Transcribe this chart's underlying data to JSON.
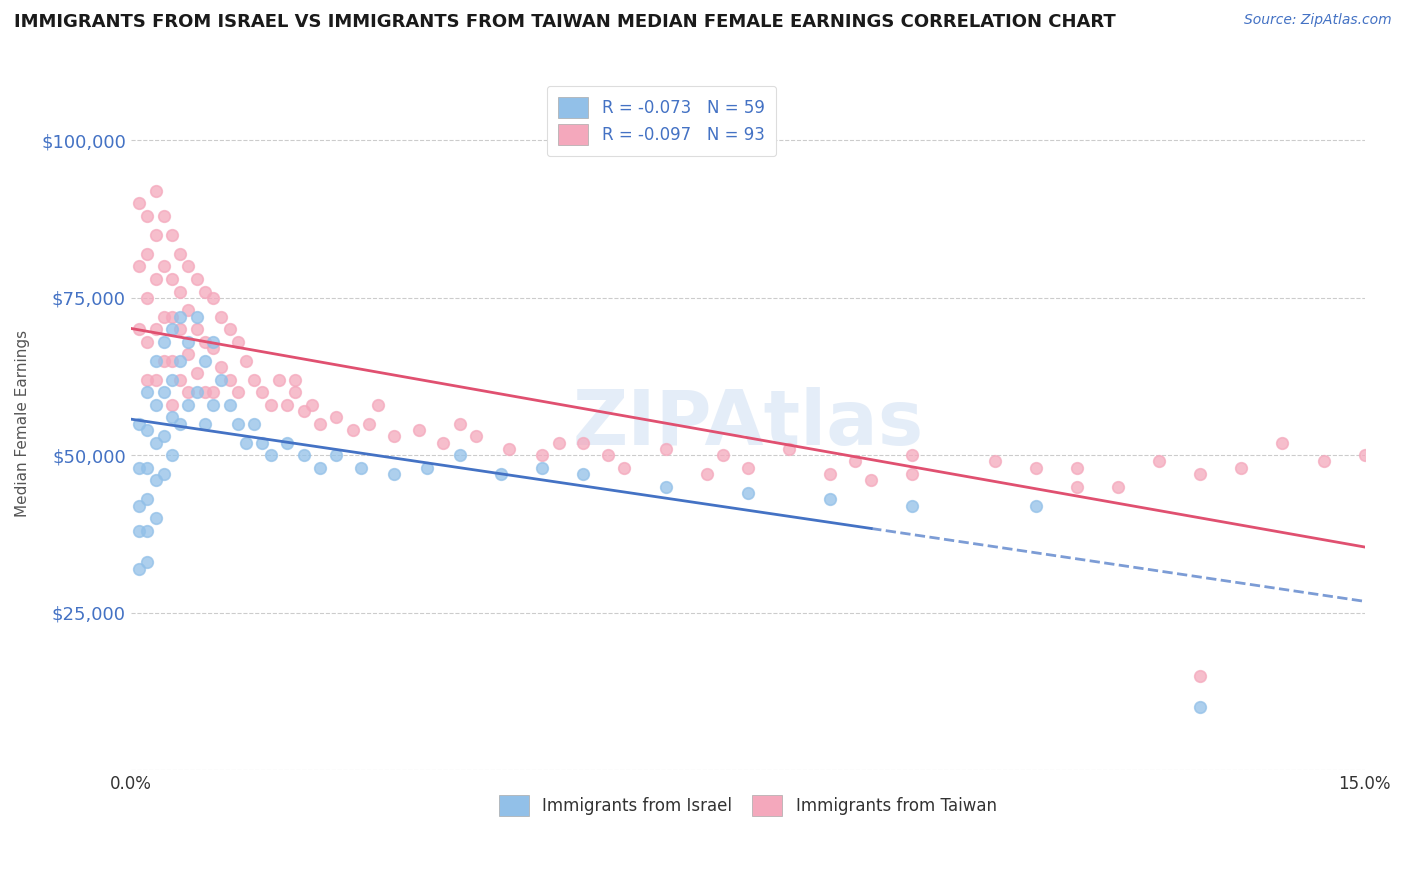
{
  "title": "IMMIGRANTS FROM ISRAEL VS IMMIGRANTS FROM TAIWAN MEDIAN FEMALE EARNINGS CORRELATION CHART",
  "source": "Source: ZipAtlas.com",
  "ylabel": "Median Female Earnings",
  "xlim": [
    0.0,
    0.15
  ],
  "ylim": [
    0,
    110000
  ],
  "yticks": [
    0,
    25000,
    50000,
    75000,
    100000
  ],
  "legend_israel": "R = -0.073   N = 59",
  "legend_taiwan": "R = -0.097   N = 93",
  "israel_color": "#92c0e8",
  "taiwan_color": "#f4a8bc",
  "israel_line_color": "#4472c4",
  "taiwan_line_color": "#e05070",
  "title_color": "#1a1a1a",
  "axis_label_color": "#555555",
  "tick_color_y": "#4472c4",
  "grid_color": "#cccccc",
  "background_color": "#ffffff",
  "watermark": "ZIPAtlas",
  "israel_x": [
    0.001,
    0.001,
    0.001,
    0.001,
    0.001,
    0.002,
    0.002,
    0.002,
    0.002,
    0.002,
    0.002,
    0.003,
    0.003,
    0.003,
    0.003,
    0.003,
    0.004,
    0.004,
    0.004,
    0.004,
    0.005,
    0.005,
    0.005,
    0.005,
    0.006,
    0.006,
    0.006,
    0.007,
    0.007,
    0.008,
    0.008,
    0.009,
    0.009,
    0.01,
    0.01,
    0.011,
    0.012,
    0.013,
    0.014,
    0.015,
    0.016,
    0.017,
    0.019,
    0.021,
    0.023,
    0.025,
    0.028,
    0.032,
    0.036,
    0.04,
    0.045,
    0.05,
    0.055,
    0.065,
    0.075,
    0.085,
    0.095,
    0.11,
    0.13
  ],
  "israel_y": [
    55000,
    48000,
    42000,
    38000,
    32000,
    60000,
    54000,
    48000,
    43000,
    38000,
    33000,
    65000,
    58000,
    52000,
    46000,
    40000,
    68000,
    60000,
    53000,
    47000,
    70000,
    62000,
    56000,
    50000,
    72000,
    65000,
    55000,
    68000,
    58000,
    72000,
    60000,
    65000,
    55000,
    68000,
    58000,
    62000,
    58000,
    55000,
    52000,
    55000,
    52000,
    50000,
    52000,
    50000,
    48000,
    50000,
    48000,
    47000,
    48000,
    50000,
    47000,
    48000,
    47000,
    45000,
    44000,
    43000,
    42000,
    42000,
    10000
  ],
  "taiwan_x": [
    0.001,
    0.001,
    0.001,
    0.002,
    0.002,
    0.002,
    0.002,
    0.002,
    0.003,
    0.003,
    0.003,
    0.003,
    0.003,
    0.004,
    0.004,
    0.004,
    0.004,
    0.005,
    0.005,
    0.005,
    0.005,
    0.005,
    0.006,
    0.006,
    0.006,
    0.006,
    0.007,
    0.007,
    0.007,
    0.007,
    0.008,
    0.008,
    0.008,
    0.009,
    0.009,
    0.009,
    0.01,
    0.01,
    0.01,
    0.011,
    0.011,
    0.012,
    0.012,
    0.013,
    0.013,
    0.014,
    0.015,
    0.016,
    0.017,
    0.018,
    0.019,
    0.02,
    0.021,
    0.022,
    0.023,
    0.025,
    0.027,
    0.029,
    0.032,
    0.035,
    0.038,
    0.042,
    0.046,
    0.052,
    0.058,
    0.065,
    0.072,
    0.08,
    0.088,
    0.095,
    0.105,
    0.115,
    0.125,
    0.135,
    0.145,
    0.06,
    0.085,
    0.11,
    0.13,
    0.14,
    0.04,
    0.03,
    0.02,
    0.05,
    0.07,
    0.09,
    0.12,
    0.15,
    0.055,
    0.075,
    0.095,
    0.115,
    0.13
  ],
  "taiwan_y": [
    90000,
    80000,
    70000,
    88000,
    82000,
    75000,
    68000,
    62000,
    92000,
    85000,
    78000,
    70000,
    62000,
    88000,
    80000,
    72000,
    65000,
    85000,
    78000,
    72000,
    65000,
    58000,
    82000,
    76000,
    70000,
    62000,
    80000,
    73000,
    66000,
    60000,
    78000,
    70000,
    63000,
    76000,
    68000,
    60000,
    75000,
    67000,
    60000,
    72000,
    64000,
    70000,
    62000,
    68000,
    60000,
    65000,
    62000,
    60000,
    58000,
    62000,
    58000,
    60000,
    57000,
    58000,
    55000,
    56000,
    54000,
    55000,
    53000,
    54000,
    52000,
    53000,
    51000,
    52000,
    50000,
    51000,
    50000,
    51000,
    49000,
    50000,
    49000,
    48000,
    49000,
    48000,
    49000,
    48000,
    47000,
    48000,
    47000,
    52000,
    55000,
    58000,
    62000,
    50000,
    47000,
    46000,
    45000,
    50000,
    52000,
    48000,
    47000,
    45000,
    15000
  ]
}
